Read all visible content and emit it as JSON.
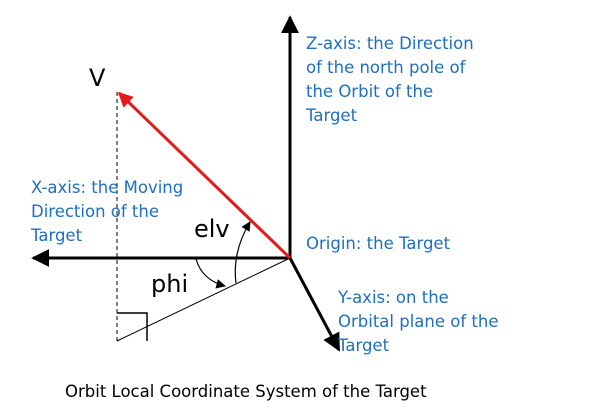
{
  "labels": {
    "z_axis": "Z-axis: the Direction\nof the north pole of\nthe Orbit of the\nTarget",
    "x_axis": "X-axis: the Moving\nDirection of the\nTarget",
    "y_axis": "Y-axis: on the\nOrbital plane of the\nTarget",
    "origin": "Origin: the Target",
    "vector": "V",
    "elevation": "elv",
    "azimuth": "phi"
  },
  "caption": "Orbit Local Coordinate System of the Target",
  "colors": {
    "axis": "#000000",
    "vector": "#e31b1b",
    "label_text": "#1f6fbf"
  }
}
